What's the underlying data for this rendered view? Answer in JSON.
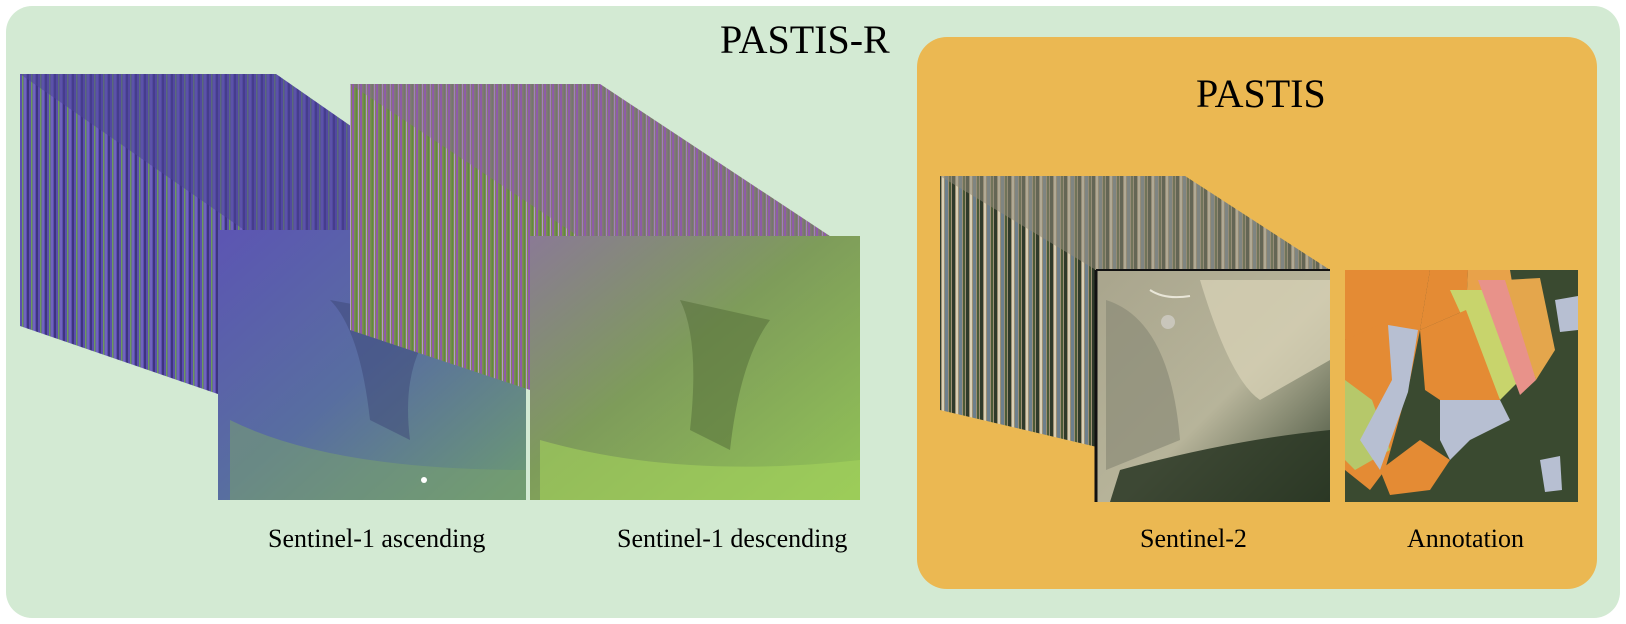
{
  "outer_title": "PASTIS-R",
  "inner_title": "PASTIS",
  "captions": {
    "s1_ascending": "Sentinel-1 ascending",
    "s1_descending": "Sentinel-1 descending",
    "s2": "Sentinel-2",
    "annotation": "Annotation"
  },
  "colors": {
    "outer_bg": "#d3ead3",
    "inner_bg": "#ebb852",
    "s1_ascending_tone": "#5a4fb0",
    "s1_descending_tone": "#7a8f4a"
  }
}
